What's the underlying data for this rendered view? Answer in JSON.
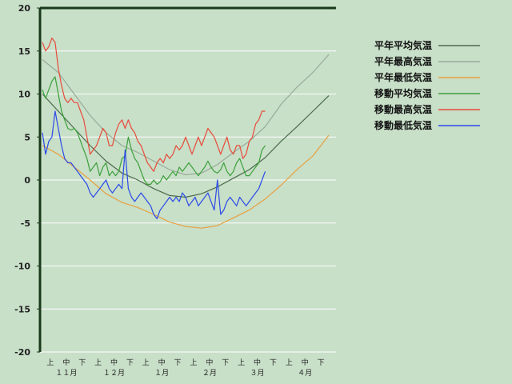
{
  "chart_data": {
    "type": "line",
    "ylim": [
      -20,
      20
    ],
    "yticks": [
      20,
      15,
      10,
      5,
      0,
      -5,
      -10,
      -15,
      -20
    ],
    "xlim": [
      0,
      182
    ],
    "period_labels": [
      {
        "x": 5,
        "label": "上"
      },
      {
        "x": 15,
        "label": "中"
      },
      {
        "x": 25,
        "label": "下"
      },
      {
        "x": 35,
        "label": "上"
      },
      {
        "x": 45,
        "label": "中"
      },
      {
        "x": 55,
        "label": "下"
      },
      {
        "x": 65,
        "label": "上"
      },
      {
        "x": 75,
        "label": "中"
      },
      {
        "x": 85,
        "label": "下"
      },
      {
        "x": 95,
        "label": "上"
      },
      {
        "x": 105,
        "label": "中"
      },
      {
        "x": 115,
        "label": "下"
      },
      {
        "x": 125,
        "label": "上"
      },
      {
        "x": 135,
        "label": "中"
      },
      {
        "x": 145,
        "label": "下"
      },
      {
        "x": 155,
        "label": "上"
      },
      {
        "x": 165,
        "label": "中"
      },
      {
        "x": 175,
        "label": "下"
      }
    ],
    "month_labels": [
      {
        "x": 15,
        "label": "１１月"
      },
      {
        "x": 45,
        "label": "１２月"
      },
      {
        "x": 75,
        "label": "１月"
      },
      {
        "x": 105,
        "label": "２月"
      },
      {
        "x": 135,
        "label": "３月"
      },
      {
        "x": 165,
        "label": "４月"
      }
    ],
    "series": [
      {
        "name": "平年平均気温",
        "color": "#4a6a4a",
        "points": [
          [
            0,
            10
          ],
          [
            10,
            8
          ],
          [
            20,
            6
          ],
          [
            30,
            4
          ],
          [
            40,
            2.2
          ],
          [
            50,
            0.8
          ],
          [
            60,
            0
          ],
          [
            70,
            -1
          ],
          [
            80,
            -1.8
          ],
          [
            90,
            -2
          ],
          [
            100,
            -1.6
          ],
          [
            110,
            -0.8
          ],
          [
            120,
            0.2
          ],
          [
            130,
            1.2
          ],
          [
            140,
            2.6
          ],
          [
            150,
            4.5
          ],
          [
            160,
            6.2
          ],
          [
            170,
            8
          ],
          [
            180,
            9.8
          ]
        ]
      },
      {
        "name": "平年最高気温",
        "color": "#9aaa9a",
        "points": [
          [
            0,
            14
          ],
          [
            10,
            12.5
          ],
          [
            20,
            10
          ],
          [
            30,
            7.5
          ],
          [
            40,
            5.5
          ],
          [
            50,
            4
          ],
          [
            60,
            3.2
          ],
          [
            70,
            2.2
          ],
          [
            80,
            1.2
          ],
          [
            90,
            0.6
          ],
          [
            100,
            0.8
          ],
          [
            110,
            1.8
          ],
          [
            120,
            3.2
          ],
          [
            130,
            4.5
          ],
          [
            140,
            6.2
          ],
          [
            150,
            8.8
          ],
          [
            160,
            10.8
          ],
          [
            170,
            12.5
          ],
          [
            180,
            14.6
          ]
        ]
      },
      {
        "name": "平年最低気温",
        "color": "#e8a040",
        "points": [
          [
            0,
            4
          ],
          [
            10,
            3
          ],
          [
            20,
            1.5
          ],
          [
            30,
            0
          ],
          [
            40,
            -1.6
          ],
          [
            50,
            -2.6
          ],
          [
            60,
            -3.2
          ],
          [
            70,
            -4
          ],
          [
            80,
            -4.9
          ],
          [
            90,
            -5.4
          ],
          [
            100,
            -5.6
          ],
          [
            110,
            -5.3
          ],
          [
            120,
            -4.4
          ],
          [
            130,
            -3.5
          ],
          [
            140,
            -2.2
          ],
          [
            150,
            -0.6
          ],
          [
            160,
            1.2
          ],
          [
            170,
            2.8
          ],
          [
            180,
            5.2
          ]
        ]
      },
      {
        "name": "移動平均気温",
        "color": "#3aa03a",
        "points": [
          [
            0,
            10.5
          ],
          [
            2,
            9.5
          ],
          [
            4,
            10.5
          ],
          [
            6,
            11.5
          ],
          [
            8,
            12
          ],
          [
            10,
            10
          ],
          [
            12,
            8
          ],
          [
            14,
            7
          ],
          [
            16,
            6
          ],
          [
            18,
            5.8
          ],
          [
            20,
            6
          ],
          [
            22,
            5.5
          ],
          [
            24,
            4.5
          ],
          [
            26,
            3.5
          ],
          [
            28,
            2.5
          ],
          [
            30,
            1
          ],
          [
            32,
            1.5
          ],
          [
            34,
            2
          ],
          [
            36,
            0.5
          ],
          [
            38,
            1.5
          ],
          [
            40,
            2
          ],
          [
            42,
            0.5
          ],
          [
            44,
            1
          ],
          [
            46,
            0.5
          ],
          [
            48,
            1
          ],
          [
            50,
            2.5
          ],
          [
            52,
            2.8
          ],
          [
            54,
            5
          ],
          [
            56,
            3.5
          ],
          [
            58,
            2.5
          ],
          [
            60,
            2
          ],
          [
            62,
            1
          ],
          [
            64,
            0
          ],
          [
            66,
            -0.5
          ],
          [
            68,
            -0.5
          ],
          [
            70,
            0
          ],
          [
            72,
            -0.5
          ],
          [
            74,
            -0.2
          ],
          [
            76,
            0.5
          ],
          [
            78,
            0
          ],
          [
            80,
            0.5
          ],
          [
            82,
            1
          ],
          [
            84,
            0.5
          ],
          [
            86,
            1.5
          ],
          [
            88,
            1
          ],
          [
            90,
            1.5
          ],
          [
            92,
            2
          ],
          [
            94,
            1.5
          ],
          [
            96,
            1
          ],
          [
            98,
            0.5
          ],
          [
            100,
            1
          ],
          [
            102,
            1.5
          ],
          [
            104,
            2.2
          ],
          [
            106,
            1.5
          ],
          [
            108,
            1
          ],
          [
            110,
            0.8
          ],
          [
            112,
            1.2
          ],
          [
            114,
            2
          ],
          [
            116,
            1
          ],
          [
            118,
            0.5
          ],
          [
            120,
            1
          ],
          [
            122,
            2
          ],
          [
            124,
            2.5
          ],
          [
            126,
            1.5
          ],
          [
            128,
            0.5
          ],
          [
            130,
            0.5
          ],
          [
            132,
            1
          ],
          [
            134,
            1.5
          ],
          [
            136,
            2
          ],
          [
            138,
            3.5
          ],
          [
            140,
            4
          ]
        ]
      },
      {
        "name": "移動最高気温",
        "color": "#e84a3a",
        "points": [
          [
            0,
            16
          ],
          [
            2,
            15
          ],
          [
            4,
            15.5
          ],
          [
            6,
            16.5
          ],
          [
            8,
            16
          ],
          [
            10,
            13
          ],
          [
            12,
            11
          ],
          [
            14,
            9.5
          ],
          [
            16,
            9
          ],
          [
            18,
            9.5
          ],
          [
            20,
            9
          ],
          [
            22,
            9
          ],
          [
            24,
            8
          ],
          [
            26,
            7
          ],
          [
            28,
            5
          ],
          [
            30,
            3
          ],
          [
            32,
            3.5
          ],
          [
            34,
            4
          ],
          [
            36,
            5
          ],
          [
            38,
            6
          ],
          [
            40,
            5.5
          ],
          [
            42,
            4
          ],
          [
            44,
            4
          ],
          [
            46,
            5.5
          ],
          [
            48,
            6.5
          ],
          [
            50,
            7
          ],
          [
            52,
            6
          ],
          [
            54,
            7
          ],
          [
            56,
            6
          ],
          [
            58,
            5.5
          ],
          [
            60,
            4.5
          ],
          [
            62,
            4
          ],
          [
            64,
            3
          ],
          [
            66,
            2
          ],
          [
            68,
            1.5
          ],
          [
            70,
            1
          ],
          [
            72,
            2
          ],
          [
            74,
            2.5
          ],
          [
            76,
            2
          ],
          [
            78,
            3
          ],
          [
            80,
            2.5
          ],
          [
            82,
            3
          ],
          [
            84,
            4
          ],
          [
            86,
            3.5
          ],
          [
            88,
            4
          ],
          [
            90,
            5
          ],
          [
            92,
            4
          ],
          [
            94,
            3
          ],
          [
            96,
            4
          ],
          [
            98,
            5
          ],
          [
            100,
            4
          ],
          [
            102,
            5
          ],
          [
            104,
            6
          ],
          [
            106,
            5.5
          ],
          [
            108,
            5
          ],
          [
            110,
            4
          ],
          [
            112,
            3
          ],
          [
            114,
            4
          ],
          [
            116,
            5
          ],
          [
            118,
            3.5
          ],
          [
            120,
            3
          ],
          [
            122,
            4
          ],
          [
            124,
            4
          ],
          [
            126,
            2.5
          ],
          [
            128,
            3
          ],
          [
            130,
            4.5
          ],
          [
            132,
            5
          ],
          [
            134,
            6.5
          ],
          [
            136,
            7
          ],
          [
            138,
            8
          ],
          [
            140,
            8
          ]
        ]
      },
      {
        "name": "移動最低気温",
        "color": "#2a4ae8",
        "points": [
          [
            0,
            5.5
          ],
          [
            2,
            3
          ],
          [
            4,
            4.5
          ],
          [
            6,
            5
          ],
          [
            8,
            8
          ],
          [
            10,
            6
          ],
          [
            12,
            4
          ],
          [
            14,
            2.5
          ],
          [
            16,
            2
          ],
          [
            18,
            2
          ],
          [
            20,
            1.5
          ],
          [
            22,
            1
          ],
          [
            24,
            0.5
          ],
          [
            26,
            0
          ],
          [
            28,
            -0.5
          ],
          [
            30,
            -1.5
          ],
          [
            32,
            -2
          ],
          [
            34,
            -1.5
          ],
          [
            36,
            -1
          ],
          [
            38,
            -0.5
          ],
          [
            40,
            0
          ],
          [
            42,
            -1
          ],
          [
            44,
            -1.5
          ],
          [
            46,
            -1
          ],
          [
            48,
            -0.5
          ],
          [
            50,
            -1
          ],
          [
            52,
            3.5
          ],
          [
            54,
            -1
          ],
          [
            56,
            -2
          ],
          [
            58,
            -2.5
          ],
          [
            60,
            -2
          ],
          [
            62,
            -1.5
          ],
          [
            64,
            -2
          ],
          [
            66,
            -2.5
          ],
          [
            68,
            -3
          ],
          [
            70,
            -4
          ],
          [
            72,
            -4.5
          ],
          [
            74,
            -3.5
          ],
          [
            76,
            -3
          ],
          [
            78,
            -2.5
          ],
          [
            80,
            -2
          ],
          [
            82,
            -2.5
          ],
          [
            84,
            -2
          ],
          [
            86,
            -2.5
          ],
          [
            88,
            -1.5
          ],
          [
            90,
            -2
          ],
          [
            92,
            -3
          ],
          [
            94,
            -2.5
          ],
          [
            96,
            -2
          ],
          [
            98,
            -3
          ],
          [
            100,
            -2.5
          ],
          [
            102,
            -2
          ],
          [
            104,
            -1.5
          ],
          [
            106,
            -2.5
          ],
          [
            108,
            -3.5
          ],
          [
            110,
            0
          ],
          [
            112,
            -4
          ],
          [
            114,
            -3.5
          ],
          [
            116,
            -2.5
          ],
          [
            118,
            -2
          ],
          [
            120,
            -2.5
          ],
          [
            122,
            -3
          ],
          [
            124,
            -2
          ],
          [
            126,
            -2.5
          ],
          [
            128,
            -3
          ],
          [
            130,
            -2.5
          ],
          [
            132,
            -2
          ],
          [
            134,
            -1.5
          ],
          [
            136,
            -1
          ],
          [
            138,
            0
          ],
          [
            140,
            1
          ]
        ]
      }
    ]
  }
}
